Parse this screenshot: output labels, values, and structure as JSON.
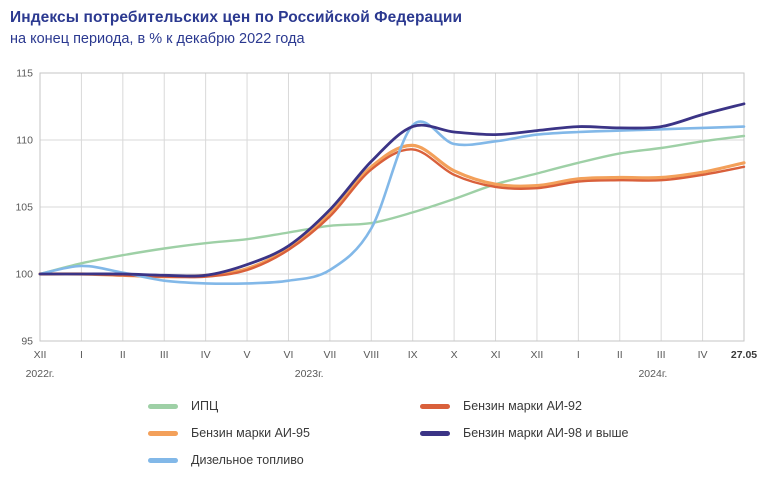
{
  "header": {
    "title": "Индексы потребительских цен по Российской Федерации",
    "subtitle": "на конец периода, в % к декабрю 2022 года"
  },
  "chart_data": {
    "type": "line",
    "title": "Индексы потребительских цен по Российской Федерации",
    "subtitle": "на конец периода, в % к декабрю 2022 года",
    "categories": [
      "XII",
      "I",
      "II",
      "III",
      "IV",
      "V",
      "VI",
      "VII",
      "VIII",
      "IX",
      "X",
      "XI",
      "XII",
      "I",
      "II",
      "III",
      "IV",
      "27.05"
    ],
    "year_labels": [
      "2022г.",
      "2023г.",
      "2024г."
    ],
    "ylim": [
      95,
      115
    ],
    "yticks": [
      95,
      100,
      105,
      110,
      115
    ],
    "grid": true,
    "legend_position": "bottom",
    "legend_order": [
      0,
      1,
      3,
      2,
      4
    ],
    "series": [
      {
        "name": "ИПЦ",
        "color": "#9ED0A6",
        "values": [
          100,
          100.8,
          101.4,
          101.9,
          102.3,
          102.6,
          103.1,
          103.6,
          103.8,
          104.6,
          105.6,
          106.7,
          107.5,
          108.3,
          109.0,
          109.4,
          109.9,
          110.3
        ]
      },
      {
        "name": "Бензин марки АИ-95",
        "color": "#F3A05A",
        "values": [
          100,
          100.0,
          99.9,
          99.8,
          99.9,
          100.4,
          101.9,
          104.5,
          108.0,
          109.6,
          107.7,
          106.7,
          106.6,
          107.1,
          107.2,
          107.2,
          107.6,
          108.3
        ]
      },
      {
        "name": "Бензин марки АИ-92",
        "color": "#D9603B",
        "values": [
          100,
          100.0,
          99.9,
          99.8,
          99.8,
          100.3,
          101.8,
          104.3,
          107.8,
          109.3,
          107.4,
          106.5,
          106.4,
          106.9,
          107.0,
          107.0,
          107.4,
          108.0
        ]
      },
      {
        "name": "Дизельное топливо",
        "color": "#82B8E8",
        "values": [
          100,
          100.6,
          100.1,
          99.5,
          99.3,
          99.3,
          99.5,
          100.3,
          103.4,
          111.1,
          109.7,
          109.9,
          110.4,
          110.6,
          110.7,
          110.8,
          110.9,
          111.0
        ]
      },
      {
        "name": "Бензин марки АИ-98 и выше",
        "color": "#3B3486",
        "values": [
          100,
          100.0,
          100.0,
          99.9,
          99.9,
          100.7,
          102.1,
          104.8,
          108.4,
          111.0,
          110.6,
          110.4,
          110.7,
          111.0,
          110.9,
          111.0,
          111.9,
          112.7
        ]
      }
    ],
    "colors": {
      "title": "#2B3990",
      "grid": "#D9D9D9",
      "plot_border": "#C6C6C6",
      "tick_text": "#595959"
    }
  }
}
